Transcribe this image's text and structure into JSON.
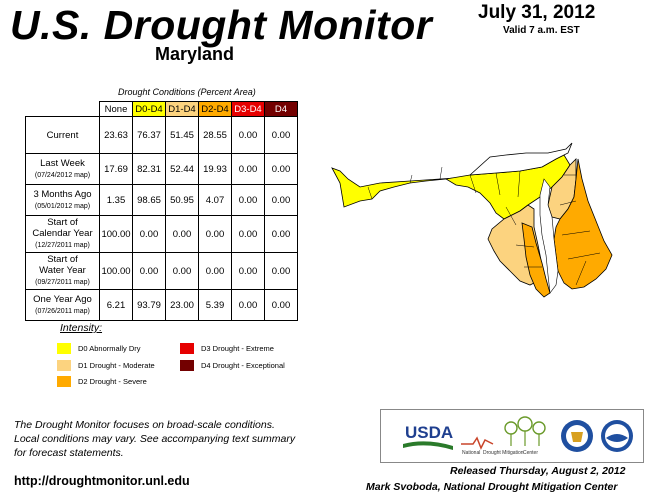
{
  "header": {
    "title": "U.S. Drought Monitor",
    "state": "Maryland",
    "date": "July 31, 2012",
    "valid": "Valid 7 a.m. EST"
  },
  "table": {
    "caption": "Drought Conditions (Percent Area)",
    "columns": [
      "None",
      "D0-D4",
      "D1-D4",
      "D2-D4",
      "D3-D4",
      "D4"
    ],
    "rows": [
      {
        "label": "Current",
        "sub": "",
        "values": [
          "23.63",
          "76.37",
          "51.45",
          "28.55",
          "0.00",
          "0.00"
        ]
      },
      {
        "label": "Last Week",
        "sub": "(07/24/2012 map)",
        "values": [
          "17.69",
          "82.31",
          "52.44",
          "19.93",
          "0.00",
          "0.00"
        ]
      },
      {
        "label": "3 Months Ago",
        "sub": "(05/01/2012 map)",
        "values": [
          "1.35",
          "98.65",
          "50.95",
          "4.07",
          "0.00",
          "0.00"
        ]
      },
      {
        "label": "Start of",
        "label2": "Calendar Year",
        "sub": "(12/27/2011 map)",
        "values": [
          "100.00",
          "0.00",
          "0.00",
          "0.00",
          "0.00",
          "0.00"
        ]
      },
      {
        "label": "Start of",
        "label2": "Water Year",
        "sub": "(09/27/2011 map)",
        "values": [
          "100.00",
          "0.00",
          "0.00",
          "0.00",
          "0.00",
          "0.00"
        ]
      },
      {
        "label": "One Year Ago",
        "sub": "(07/26/2011 map)",
        "values": [
          "6.21",
          "93.79",
          "23.00",
          "5.39",
          "0.00",
          "0.00"
        ]
      }
    ]
  },
  "legend": {
    "title": "Intensity:",
    "items": [
      {
        "label": "D0 Abnormally Dry",
        "color": "#ffff00"
      },
      {
        "label": "D1 Drought - Moderate",
        "color": "#fcd37f"
      },
      {
        "label": "D2 Drought - Severe",
        "color": "#ffaa00"
      },
      {
        "label": "D3 Drought - Extreme",
        "color": "#e60000"
      },
      {
        "label": "D4 Drought - Exceptional",
        "color": "#730000"
      }
    ]
  },
  "footer": {
    "note_line1": "The Drought Monitor focuses on broad-scale conditions.",
    "note_line2": "Local conditions may vary. See accompanying text summary",
    "note_line3": "for forecast statements.",
    "url": "http://droughtmonitor.unl.edu",
    "released": "Released Thursday, August 2, 2012",
    "author": "Mark Svoboda, National Drought Mitigation Center"
  },
  "logos": {
    "usda": "USDA",
    "ndmc_line1": "National",
    "ndmc_line2": "Drought Mitigation",
    "ndmc_line3": "Center"
  },
  "colors": {
    "d0": "#ffff00",
    "d1": "#fcd37f",
    "d2": "#ffaa00",
    "d3": "#e60000",
    "d4": "#730000"
  }
}
